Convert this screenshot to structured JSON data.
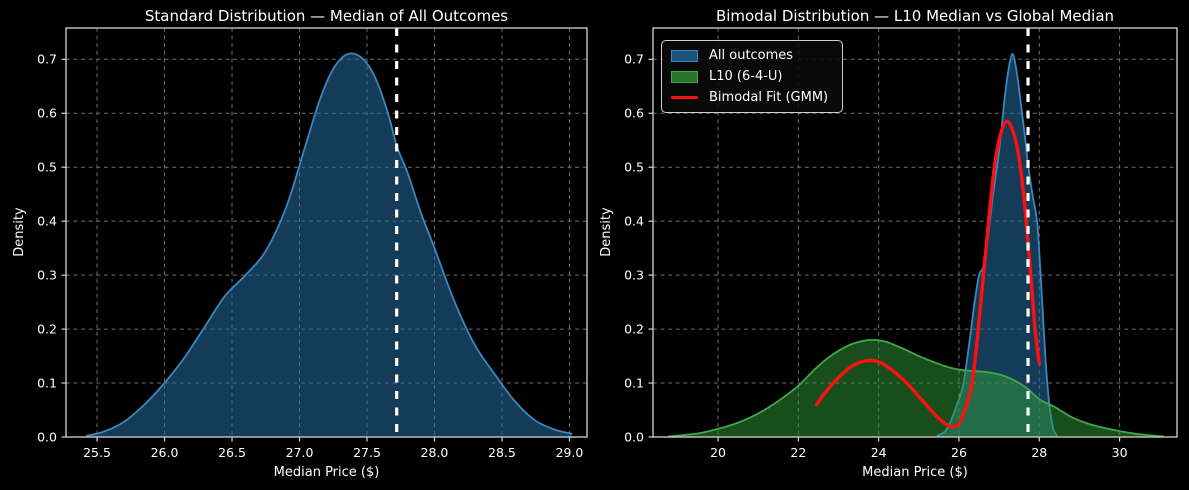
{
  "figure": {
    "background": "#000000",
    "text_color": "#ffffff",
    "grid_color": "#858585",
    "spine_color": "#d4d4d4"
  },
  "chart_data": [
    {
      "type": "area",
      "title": "Standard Distribution — Median of All Outcomes",
      "xlabel": "Median Price ($)",
      "ylabel": "Density",
      "xlim": [
        25.27,
        29.13
      ],
      "ylim": [
        0,
        0.758
      ],
      "grid": true,
      "x_ticks": [
        "25.5",
        "26.0",
        "26.5",
        "27.0",
        "27.5",
        "28.0",
        "28.5",
        "29.0"
      ],
      "y_ticks": [
        "0.0",
        "0.1",
        "0.2",
        "0.3",
        "0.4",
        "0.5",
        "0.6",
        "0.7"
      ],
      "median_line": {
        "x": 27.72,
        "color": "#ffffff",
        "style": "dashed"
      },
      "series": [
        {
          "name": "All outcomes",
          "kind": "kde_fill",
          "line_color": "#3b86bd",
          "fill_color": "rgba(36,110,160,0.55)",
          "x": [
            25.42,
            25.55,
            25.7,
            25.85,
            26.0,
            26.15,
            26.3,
            26.45,
            26.6,
            26.75,
            26.9,
            27.05,
            27.15,
            27.25,
            27.35,
            27.45,
            27.55,
            27.65,
            27.72,
            27.8,
            27.9,
            28.0,
            28.15,
            28.3,
            28.45,
            28.6,
            28.75,
            28.9,
            29.02
          ],
          "y": [
            0.002,
            0.01,
            0.028,
            0.06,
            0.1,
            0.148,
            0.205,
            0.262,
            0.3,
            0.345,
            0.425,
            0.545,
            0.625,
            0.682,
            0.709,
            0.705,
            0.672,
            0.605,
            0.54,
            0.49,
            0.415,
            0.35,
            0.25,
            0.17,
            0.115,
            0.065,
            0.03,
            0.013,
            0.006
          ]
        }
      ]
    },
    {
      "type": "area",
      "title": "Bimodal Distribution — L10 Median vs Global Median",
      "xlabel": "Median Price ($)",
      "ylabel": "Density",
      "xlim": [
        18.38,
        31.43
      ],
      "ylim": [
        0,
        0.758
      ],
      "grid": true,
      "x_ticks": [
        "20",
        "22",
        "24",
        "26",
        "28",
        "30"
      ],
      "y_ticks": [
        "0.0",
        "0.1",
        "0.2",
        "0.3",
        "0.4",
        "0.5",
        "0.6",
        "0.7"
      ],
      "median_line": {
        "x": 27.72,
        "color": "#ffffff",
        "style": "dashed"
      },
      "legend": {
        "position": "upper-left",
        "items": [
          "All outcomes",
          "L10 (6-4-U)",
          "Bimodal Fit (GMM)"
        ]
      },
      "series": [
        {
          "name": "All outcomes",
          "kind": "kde_fill",
          "line_color": "#3b86bd",
          "fill_color": "rgba(36,110,160,0.55)",
          "x": [
            25.45,
            25.65,
            25.8,
            25.95,
            26.1,
            26.25,
            26.38,
            26.5,
            26.6,
            26.72,
            26.85,
            27.0,
            27.12,
            27.22,
            27.33,
            27.43,
            27.53,
            27.63,
            27.73,
            27.83,
            27.95,
            28.05,
            28.15,
            28.25,
            28.35,
            28.45
          ],
          "y": [
            0.002,
            0.01,
            0.03,
            0.06,
            0.095,
            0.17,
            0.245,
            0.3,
            0.315,
            0.37,
            0.45,
            0.53,
            0.615,
            0.675,
            0.71,
            0.68,
            0.625,
            0.565,
            0.5,
            0.45,
            0.395,
            0.28,
            0.15,
            0.06,
            0.015,
            0.002
          ]
        },
        {
          "name": "L10 (6-4-U)",
          "kind": "kde_fill",
          "line_color": "#3fa946",
          "fill_color": "rgba(50,155,55,0.5)",
          "x": [
            18.75,
            19.2,
            19.6,
            20.0,
            20.4,
            20.8,
            21.2,
            21.6,
            22.0,
            22.4,
            22.8,
            23.2,
            23.6,
            23.9,
            24.2,
            24.6,
            25.0,
            25.4,
            25.8,
            26.2,
            26.6,
            27.0,
            27.35,
            27.7,
            28.0,
            28.4,
            28.8,
            29.2,
            29.6,
            30.0,
            30.4,
            30.8,
            31.1
          ],
          "y": [
            0.001,
            0.004,
            0.008,
            0.015,
            0.024,
            0.036,
            0.052,
            0.072,
            0.095,
            0.125,
            0.15,
            0.168,
            0.178,
            0.18,
            0.176,
            0.164,
            0.15,
            0.138,
            0.128,
            0.123,
            0.121,
            0.116,
            0.106,
            0.09,
            0.07,
            0.055,
            0.037,
            0.025,
            0.017,
            0.011,
            0.006,
            0.003,
            0.001
          ]
        },
        {
          "name": "Bimodal Fit (GMM)",
          "kind": "line",
          "line_color": "#ff0f0f",
          "line_width": 3.4,
          "x": [
            22.45,
            22.7,
            23.0,
            23.3,
            23.6,
            23.85,
            24.1,
            24.4,
            24.7,
            25.0,
            25.3,
            25.55,
            25.81,
            26.0,
            26.15,
            26.33,
            26.48,
            26.61,
            26.75,
            26.9,
            27.05,
            27.2,
            27.35,
            27.48,
            27.61,
            27.72,
            27.82,
            27.9,
            28.0
          ],
          "y": [
            0.06,
            0.085,
            0.11,
            0.13,
            0.14,
            0.142,
            0.136,
            0.12,
            0.1,
            0.075,
            0.05,
            0.031,
            0.019,
            0.025,
            0.05,
            0.1,
            0.2,
            0.3,
            0.41,
            0.51,
            0.565,
            0.585,
            0.565,
            0.525,
            0.45,
            0.36,
            0.27,
            0.195,
            0.136
          ]
        }
      ]
    }
  ]
}
